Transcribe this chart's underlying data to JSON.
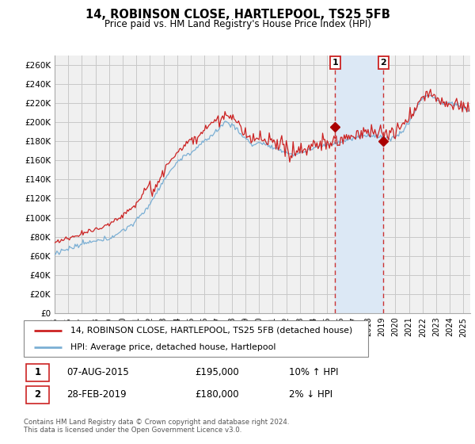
{
  "title": "14, ROBINSON CLOSE, HARTLEPOOL, TS25 5FB",
  "subtitle": "Price paid vs. HM Land Registry's House Price Index (HPI)",
  "footer": "Contains HM Land Registry data © Crown copyright and database right 2024.\nThis data is licensed under the Open Government Licence v3.0.",
  "legend_line1": "14, ROBINSON CLOSE, HARTLEPOOL, TS25 5FB (detached house)",
  "legend_line2": "HPI: Average price, detached house, Hartlepool",
  "transaction1": {
    "label": "1",
    "date": "07-AUG-2015",
    "price": "£195,000",
    "change": "10% ↑ HPI"
  },
  "transaction2": {
    "label": "2",
    "date": "28-FEB-2019",
    "price": "£180,000",
    "change": "2% ↓ HPI"
  },
  "xmin": 1995.0,
  "xmax": 2025.5,
  "ymin": 0,
  "ymax": 270000,
  "yticks": [
    0,
    20000,
    40000,
    60000,
    80000,
    100000,
    120000,
    140000,
    160000,
    180000,
    200000,
    220000,
    240000,
    260000
  ],
  "ytick_labels": [
    "£0",
    "£20K",
    "£40K",
    "£60K",
    "£80K",
    "£100K",
    "£120K",
    "£140K",
    "£160K",
    "£180K",
    "£200K",
    "£220K",
    "£240K",
    "£260K"
  ],
  "xticks": [
    1995,
    1996,
    1997,
    1998,
    1999,
    2000,
    2001,
    2002,
    2003,
    2004,
    2005,
    2006,
    2007,
    2008,
    2009,
    2010,
    2011,
    2012,
    2013,
    2014,
    2015,
    2016,
    2017,
    2018,
    2019,
    2020,
    2021,
    2022,
    2023,
    2024,
    2025
  ],
  "vline1_x": 2015.58,
  "vline2_x": 2019.12,
  "dot1_y": 195000,
  "dot2_y": 180000,
  "hpi_color": "#7BAFD4",
  "price_color": "#CC2222",
  "dot_color": "#AA0000",
  "vline_color": "#CC3333",
  "shade_color": "#DCE8F5",
  "background_color": "#F0F0F0",
  "grid_color": "#C8C8C8"
}
